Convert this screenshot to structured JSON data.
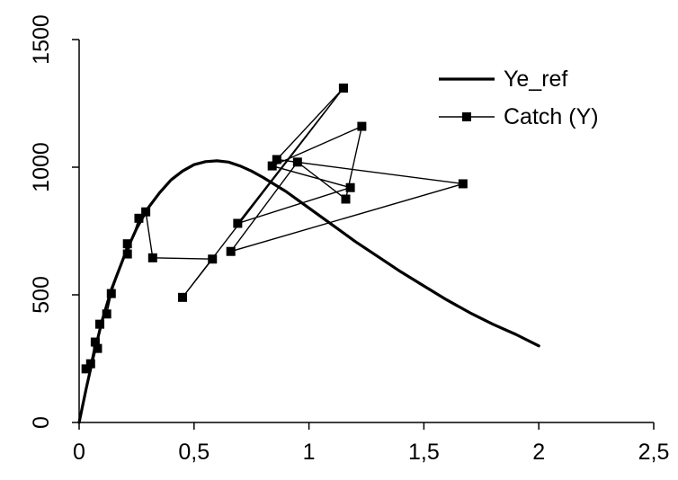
{
  "chart_data": {
    "type": "line",
    "title": "",
    "xlabel": "",
    "ylabel": "",
    "xlim": [
      0,
      2.5
    ],
    "ylim": [
      0,
      1500
    ],
    "x_ticks": [
      "0",
      "0,5",
      "1",
      "1,5",
      "2",
      "2,5"
    ],
    "y_ticks": [
      "0",
      "500",
      "1000",
      "1500"
    ],
    "grid": false,
    "legend_position": "top-right",
    "series": [
      {
        "name": "Ye_ref",
        "style": "thick-line",
        "color": "#000000",
        "x": [
          0,
          0.03,
          0.06,
          0.1,
          0.14,
          0.2,
          0.25,
          0.3,
          0.35,
          0.4,
          0.45,
          0.5,
          0.55,
          0.6,
          0.65,
          0.7,
          0.75,
          0.8,
          0.9,
          1.0,
          1.1,
          1.2,
          1.3,
          1.4,
          1.5,
          1.6,
          1.7,
          1.8,
          1.9,
          2.0
        ],
        "y": [
          0,
          130,
          250,
          400,
          520,
          660,
          760,
          840,
          900,
          950,
          985,
          1010,
          1022,
          1025,
          1020,
          1005,
          985,
          960,
          905,
          840,
          775,
          710,
          650,
          590,
          535,
          480,
          430,
          385,
          345,
          300
        ]
      },
      {
        "name": "Catch (Y)",
        "style": "line-with-square-markers",
        "color": "#000000",
        "x": [
          0.03,
          0.05,
          0.07,
          0.08,
          0.09,
          0.12,
          0.14,
          0.21,
          0.21,
          0.26,
          0.29,
          0.32,
          0.58,
          0.45,
          1.15,
          0.69,
          1.18,
          0.84,
          1.23,
          1.16,
          0.95,
          0.66,
          1.67,
          0.86,
          1.15
        ],
        "y": [
          210,
          230,
          315,
          290,
          385,
          425,
          505,
          700,
          660,
          800,
          825,
          645,
          640,
          490,
          1310,
          780,
          920,
          1005,
          1160,
          875,
          1020,
          670,
          935,
          1030,
          1310
        ]
      }
    ]
  }
}
